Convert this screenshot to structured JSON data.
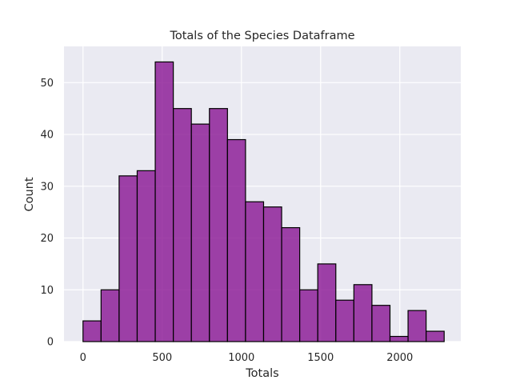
{
  "chart_data": {
    "type": "bar",
    "title": "Totals of the Species Dataframe",
    "xlabel": "Totals",
    "ylabel": "Count",
    "bin_start": 0,
    "bin_width": 114,
    "values": [
      4,
      10,
      32,
      33,
      54,
      45,
      42,
      45,
      39,
      27,
      26,
      22,
      10,
      15,
      8,
      11,
      7,
      1,
      6,
      2
    ],
    "xlim": [
      -120,
      2385
    ],
    "ylim": [
      0,
      57
    ],
    "xticks": [
      0,
      500,
      1000,
      1500,
      2000
    ],
    "yticks": [
      0,
      10,
      20,
      30,
      40,
      50
    ],
    "grid": true,
    "colors": {
      "bar_fill": "#8b1a95",
      "bar_edge": "#000000",
      "plot_background": "#eaeaf2",
      "grid": "#ffffff"
    }
  }
}
